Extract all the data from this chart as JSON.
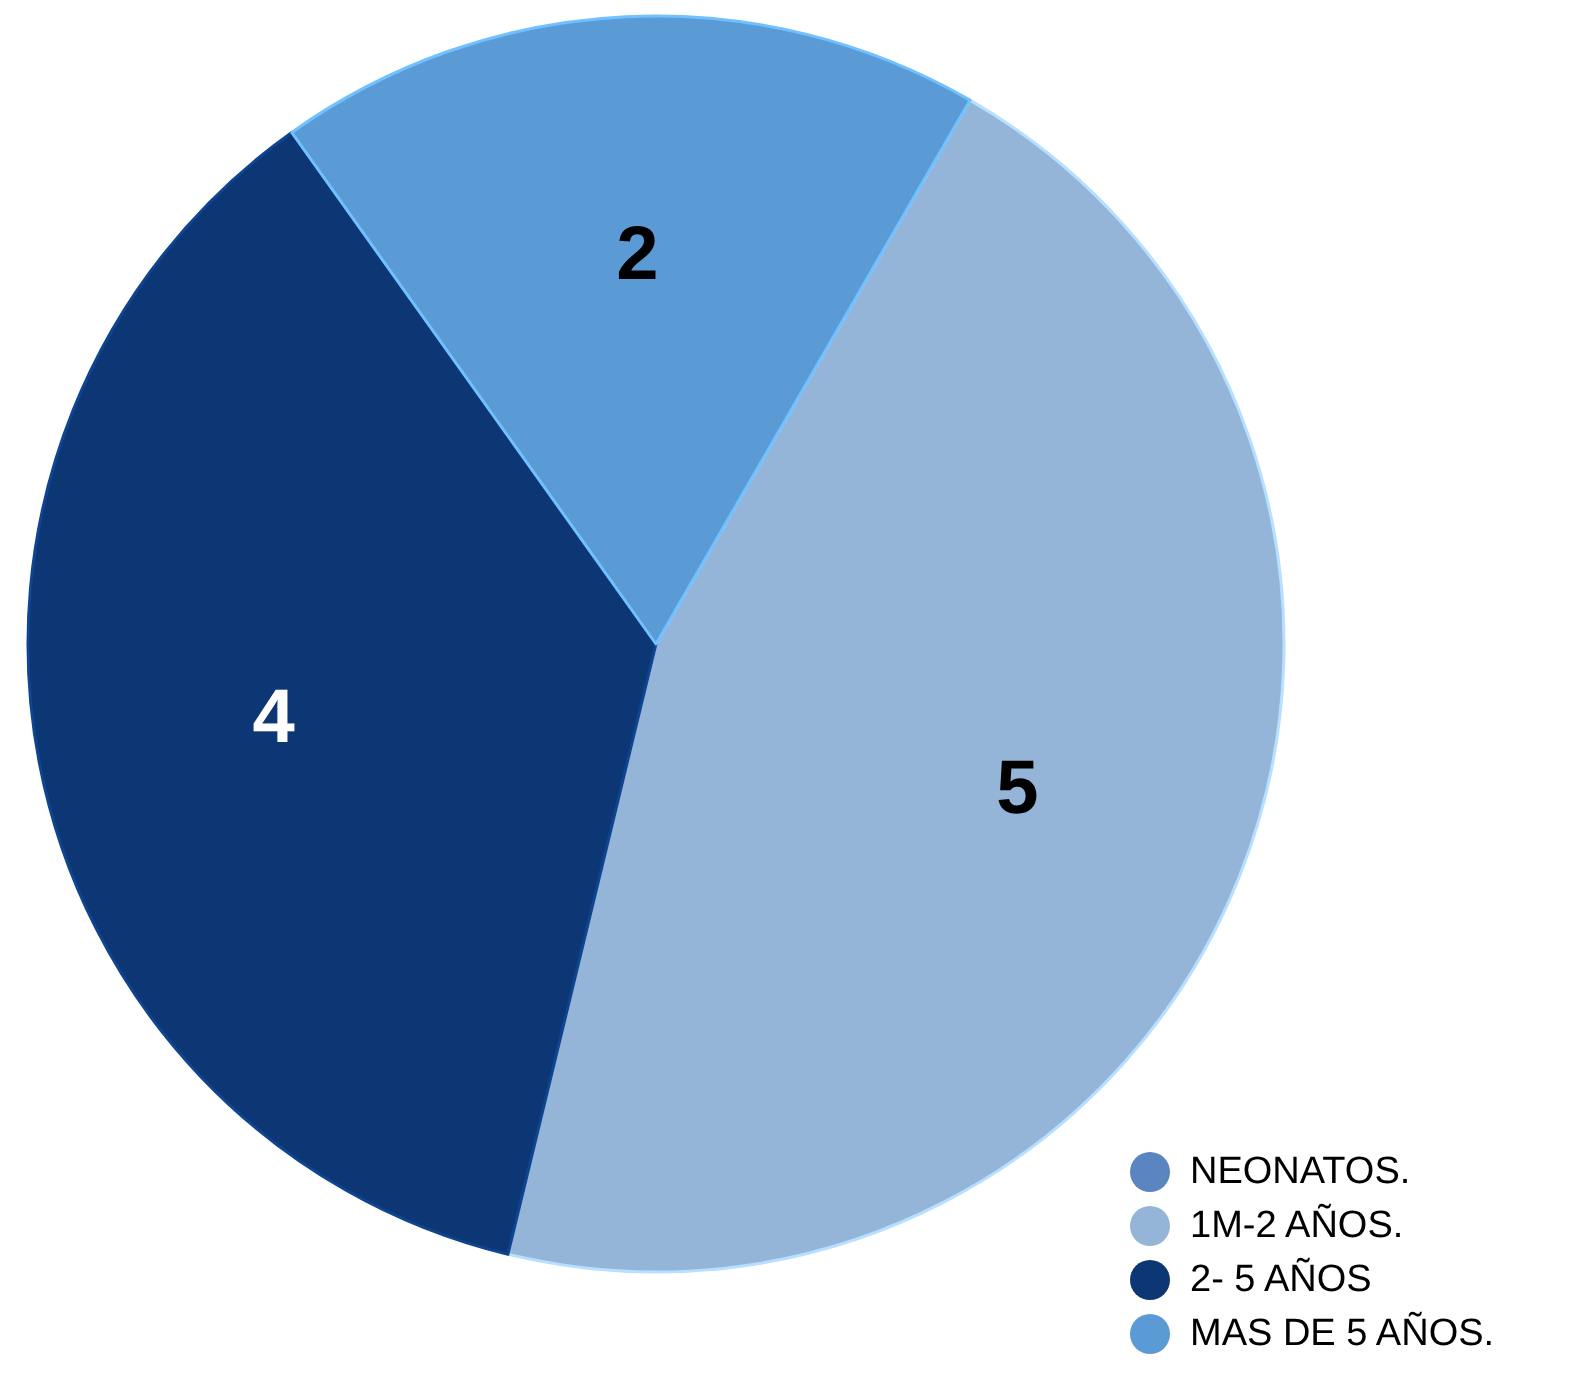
{
  "chart_data": {
    "type": "pie",
    "categories": [
      "NEONATOS.",
      "1M-2 AÑOS.",
      "2- 5 AÑOS",
      "MAS DE 5 AÑOS."
    ],
    "values": [
      0,
      5,
      4,
      2
    ],
    "colors": [
      "#5b85c0",
      "#94b4d8",
      "#0c3774",
      "#5b9bd5"
    ],
    "value_labels": [
      null,
      "5",
      "4",
      "2"
    ],
    "legend": "bottom right"
  }
}
